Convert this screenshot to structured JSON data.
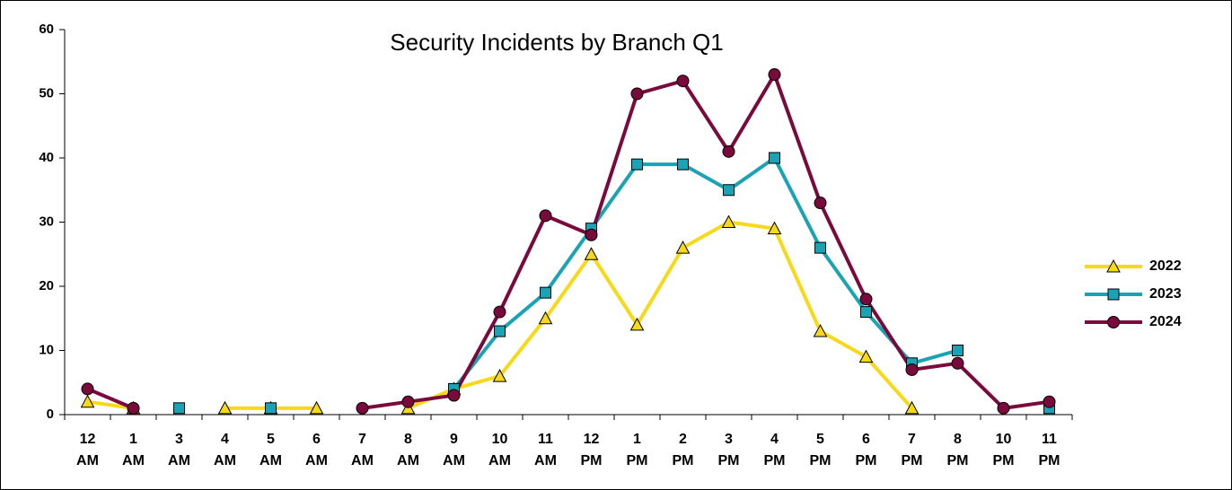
{
  "chart_data": {
    "type": "line",
    "title": "Security Incidents by Branch Q1",
    "categories": [
      "12 AM",
      "1 AM",
      "3 AM",
      "4 AM",
      "5 AM",
      "6 AM",
      "7 AM",
      "8 AM",
      "9 AM",
      "10 AM",
      "11 AM",
      "12 PM",
      "1 PM",
      "2 PM",
      "3 PM",
      "4 PM",
      "5 PM",
      "6 PM",
      "7 PM",
      "8 PM",
      "10 PM",
      "11 PM"
    ],
    "series": [
      {
        "name": "2022",
        "color": "#f7d917",
        "marker": "triangle",
        "values": [
          2,
          1,
          null,
          1,
          1,
          1,
          null,
          1,
          4,
          6,
          15,
          25,
          14,
          26,
          30,
          29,
          13,
          9,
          1,
          null,
          null,
          null
        ]
      },
      {
        "name": "2023",
        "color": "#1aa3b5",
        "marker": "square",
        "values": [
          null,
          null,
          1,
          null,
          1,
          null,
          null,
          null,
          4,
          13,
          19,
          29,
          39,
          39,
          35,
          40,
          26,
          16,
          8,
          10,
          null,
          1
        ]
      },
      {
        "name": "2024",
        "color": "#7b0a3c",
        "marker": "circle",
        "values": [
          4,
          1,
          null,
          null,
          null,
          null,
          1,
          2,
          3,
          16,
          31,
          28,
          50,
          52,
          41,
          53,
          33,
          18,
          7,
          8,
          1,
          2
        ]
      }
    ],
    "ylim": [
      0,
      60
    ],
    "yticks": [
      0,
      10,
      20,
      30,
      40,
      50,
      60
    ],
    "grid": false,
    "legend": "right"
  }
}
